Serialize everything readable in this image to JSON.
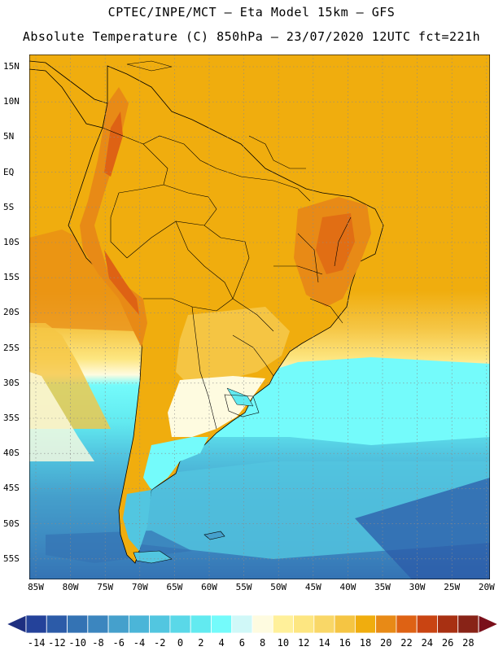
{
  "title_line1": "CPTEC/INPE/MCT –  Eta Model 15km – GFS",
  "title_line2": "Absolute Temperature (C) 850hPa – 23/07/2020 12UTC fct=221h",
  "lat_labels": [
    "15N",
    "10N",
    "5N",
    "EQ",
    "5S",
    "10S",
    "15S",
    "20S",
    "25S",
    "30S",
    "35S",
    "40S",
    "45S",
    "50S",
    "55S"
  ],
  "lon_labels": [
    "85W",
    "80W",
    "75W",
    "70W",
    "65W",
    "60W",
    "55W",
    "50W",
    "45W",
    "40W",
    "35W",
    "30W",
    "25W",
    "20W"
  ],
  "colorbar": {
    "labels": [
      "-14",
      "-12",
      "-10",
      "-8",
      "-6",
      "-4",
      "-2",
      "0",
      "2",
      "4",
      "6",
      "8",
      "10",
      "12",
      "14",
      "16",
      "18",
      "20",
      "22",
      "24",
      "26",
      "28"
    ],
    "colors": [
      "#24429a",
      "#2c5ba8",
      "#3473b4",
      "#3c86bf",
      "#45a0cc",
      "#4bb5d8",
      "#52c6e0",
      "#5ad8e8",
      "#62eaf0",
      "#74fbfb",
      "#d0f8f8",
      "#fefbe0",
      "#fff09a",
      "#fde681",
      "#f9d767",
      "#f5c543",
      "#f0ad0e",
      "#e88a16",
      "#de6214",
      "#c94412",
      "#a83012",
      "#882317"
    ],
    "under_color": "#1e2f80",
    "over_color": "#7a0f1a"
  },
  "map": {
    "ocean_north_color": "#f0ad0e",
    "ocean_south_color": "#45a0cc",
    "land_color": "#f0ad0e",
    "high_terrain_color": "#e88a16",
    "peak_color": "#de6214",
    "border_color": "#000000",
    "grid_color": "#8a8a8a"
  }
}
